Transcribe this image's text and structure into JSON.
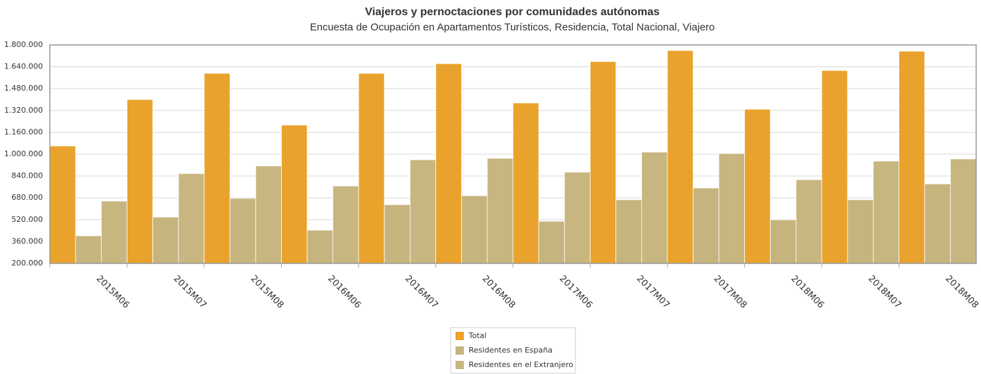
{
  "chart_data": {
    "type": "bar",
    "title": "Viajeros y pernoctaciones por comunidades autónomas",
    "subtitle": "Encuesta de Ocupación en Apartamentos Turísticos, Residencia, Total Nacional, Viajero",
    "categories": [
      "2015M06",
      "2015M07",
      "2015M08",
      "2016M06",
      "2016M07",
      "2016M08",
      "2017M06",
      "2017M07",
      "2017M08",
      "2018M06",
      "2018M07",
      "2018M08"
    ],
    "series": [
      {
        "name": "Total",
        "color": "#e9a22b",
        "values": [
          1060000,
          1400000,
          1592000,
          1213000,
          1592000,
          1663000,
          1375000,
          1678000,
          1759000,
          1329000,
          1613000,
          1754000
        ]
      },
      {
        "name": "Residentes en España",
        "color": "#c6b47e",
        "values": [
          402000,
          539000,
          676000,
          443000,
          630000,
          696000,
          509000,
          666000,
          752000,
          519000,
          666000,
          782000
        ]
      },
      {
        "name": "Residentes en el Extranjero",
        "color": "#c8b680",
        "values": [
          656000,
          858000,
          914000,
          767000,
          959000,
          970000,
          868000,
          1015000,
          1005000,
          813000,
          949000,
          965000
        ]
      }
    ],
    "ylim": [
      200000,
      1800000
    ],
    "yticks": [
      {
        "value": 200000,
        "label": "200.000"
      },
      {
        "value": 360000,
        "label": "360.000"
      },
      {
        "value": 520000,
        "label": "520.000"
      },
      {
        "value": 680000,
        "label": "680.000"
      },
      {
        "value": 840000,
        "label": "840.000"
      },
      {
        "value": 1000000,
        "label": "1.000.000"
      },
      {
        "value": 1160000,
        "label": "1.160.000"
      },
      {
        "value": 1320000,
        "label": "1.320.000"
      },
      {
        "value": 1480000,
        "label": "1.480.000"
      },
      {
        "value": 1640000,
        "label": "1.640.000"
      },
      {
        "value": 1800000,
        "label": "1.800.000"
      }
    ],
    "grid": true
  }
}
